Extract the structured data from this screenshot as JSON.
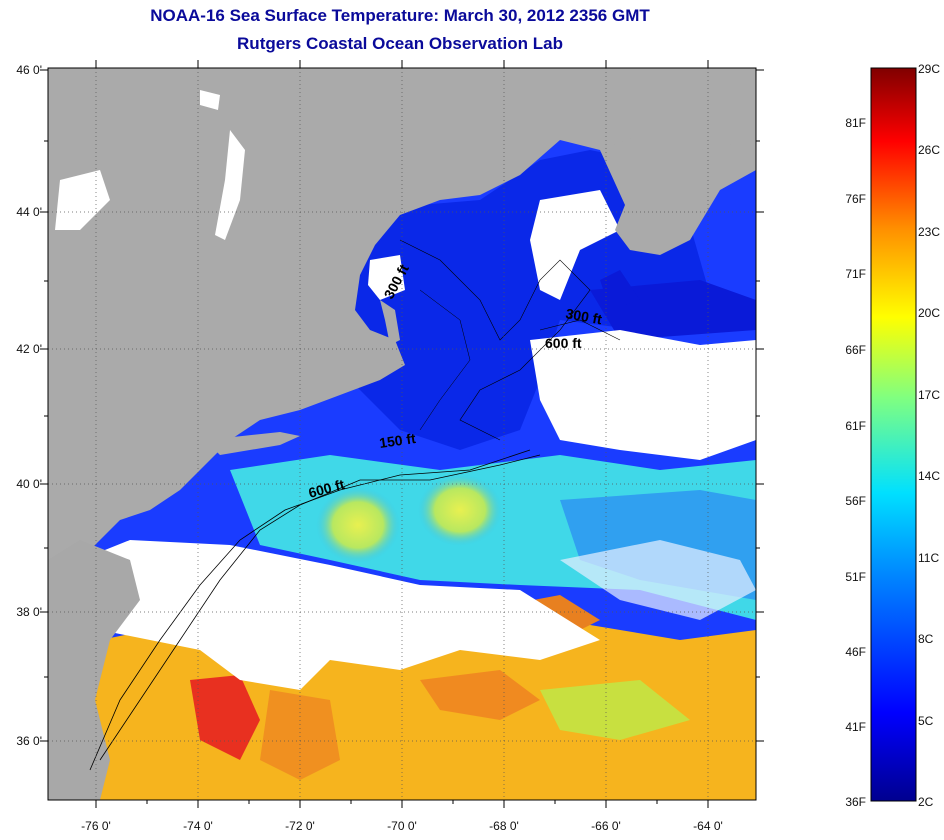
{
  "title": "NOAA-16 Sea Surface Temperature:  March 30, 2012 2356 GMT",
  "subtitle": "Rutgers Coastal Ocean Observation Lab",
  "lat_labels": [
    "46 0'",
    "44 0'",
    "42 0'",
    "40 0'",
    "38 0'",
    "36 0'"
  ],
  "lon_labels": [
    "-76 0'",
    "-74 0'",
    "-72 0'",
    "-70 0'",
    "-68 0'",
    "-66 0'",
    "-64 0'"
  ],
  "contour_labels": [
    "300 ft",
    "600 ft",
    "150 ft",
    "600 ft",
    "300 ft"
  ],
  "colorbar": {
    "fahrenheit": [
      "81F",
      "76F",
      "71F",
      "66F",
      "61F",
      "56F",
      "51F",
      "46F",
      "41F",
      "36F"
    ],
    "celsius": [
      "29C",
      "26C",
      "23C",
      "20C",
      "17C",
      "14C",
      "11C",
      "8C",
      "5C",
      "2C"
    ]
  },
  "colors": {
    "land": "#aaaaaa",
    "cloud": "#ffffff",
    "title": "#0a0a9a",
    "colormap": [
      "#00008f",
      "#0000ff",
      "#0080ff",
      "#00ffff",
      "#80ff80",
      "#ffff00",
      "#ff8000",
      "#ff0000",
      "#800000"
    ]
  }
}
